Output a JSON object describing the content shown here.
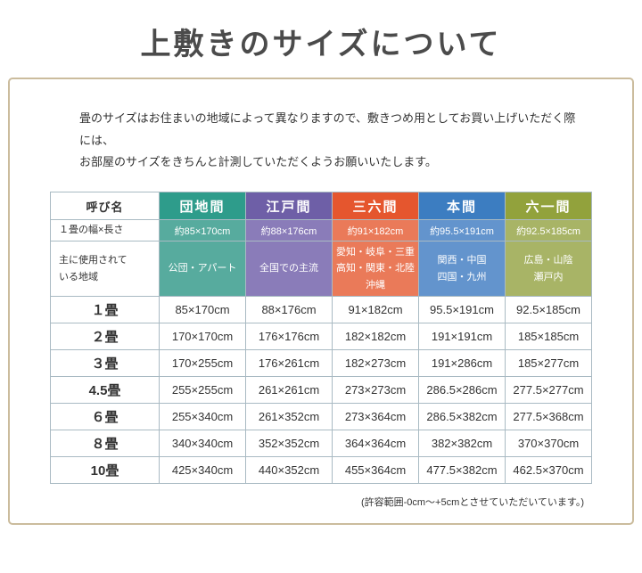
{
  "page": {
    "title": "上敷きのサイズについて",
    "intro_line1": "畳のサイズはお住まいの地域によって異なりますので、敷きつめ用としてお買い上げいただく際には、",
    "intro_line2": "お部屋のサイズをきちんと計測していただくようお願いいたします。",
    "footer_note": "(許容範囲-0cm〜+5cmとさせていただいています。)"
  },
  "table": {
    "corner_header": "呼び名",
    "width_row_label": "１畳の幅×長さ",
    "region_row_label": "主に使用されて\nいる地域",
    "size_row_labels": [
      "１畳",
      "２畳",
      "３畳",
      "4.5畳",
      "６畳",
      "８畳",
      "10畳"
    ],
    "columns": [
      {
        "name": "団地間",
        "color": "#2e9c8b",
        "light": "#57ab9e",
        "width_length": "約85×170cm",
        "region": "公団・アパート",
        "sizes": [
          "85×170cm",
          "170×170cm",
          "170×255cm",
          "255×255cm",
          "255×340cm",
          "340×340cm",
          "425×340cm"
        ]
      },
      {
        "name": "江戸間",
        "color": "#6e5fa7",
        "light": "#8a7cb9",
        "width_length": "約88×176cm",
        "region": "全国での主流",
        "sizes": [
          "88×176cm",
          "176×176cm",
          "176×261cm",
          "261×261cm",
          "261×352cm",
          "352×352cm",
          "440×352cm"
        ]
      },
      {
        "name": "三六間",
        "color": "#e5562e",
        "light": "#ea7a59",
        "width_length": "約91×182cm",
        "region": "愛知・岐阜・三重\n高知・関東・北陸\n沖縄",
        "sizes": [
          "91×182cm",
          "182×182cm",
          "182×273cm",
          "273×273cm",
          "273×364cm",
          "364×364cm",
          "455×364cm"
        ]
      },
      {
        "name": "本間",
        "color": "#3c7dc1",
        "light": "#6394cd",
        "width_length": "約95.5×191cm",
        "region": "関西・中国\n四国・九州",
        "sizes": [
          "95.5×191cm",
          "191×191cm",
          "191×286cm",
          "286.5×286cm",
          "286.5×382cm",
          "382×382cm",
          "477.5×382cm"
        ]
      },
      {
        "name": "六一間",
        "color": "#92a23c",
        "light": "#a8b466",
        "width_length": "約92.5×185cm",
        "region": "広島・山陰\n瀬戸内",
        "sizes": [
          "92.5×185cm",
          "185×185cm",
          "185×277cm",
          "277.5×277cm",
          "277.5×368cm",
          "370×370cm",
          "462.5×370cm"
        ]
      }
    ]
  }
}
